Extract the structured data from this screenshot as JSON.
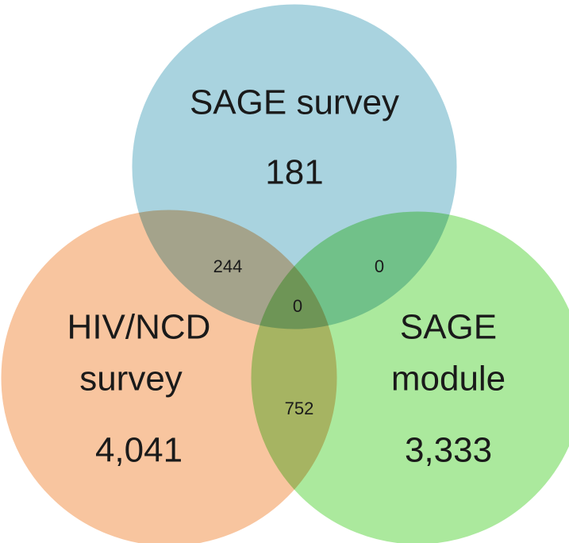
{
  "sets": [
    {
      "label_lines": [
        "SAGE survey"
      ],
      "count": "181"
    },
    {
      "label_lines": [
        "HIV/NCD",
        "survey"
      ],
      "count": "4,041"
    },
    {
      "label_lines": [
        "SAGE",
        "module"
      ],
      "count": "3,333"
    }
  ],
  "intersections": [
    {
      "sets": [
        "SAGE survey",
        "HIV/NCD survey"
      ],
      "count": "244"
    },
    {
      "sets": [
        "SAGE survey",
        "SAGE module"
      ],
      "count": "0"
    },
    {
      "sets": [
        "SAGE survey",
        "HIV/NCD survey",
        "SAGE module"
      ],
      "count": "0"
    },
    {
      "sets": [
        "HIV/NCD survey",
        "SAGE module"
      ],
      "count": "752"
    }
  ]
}
